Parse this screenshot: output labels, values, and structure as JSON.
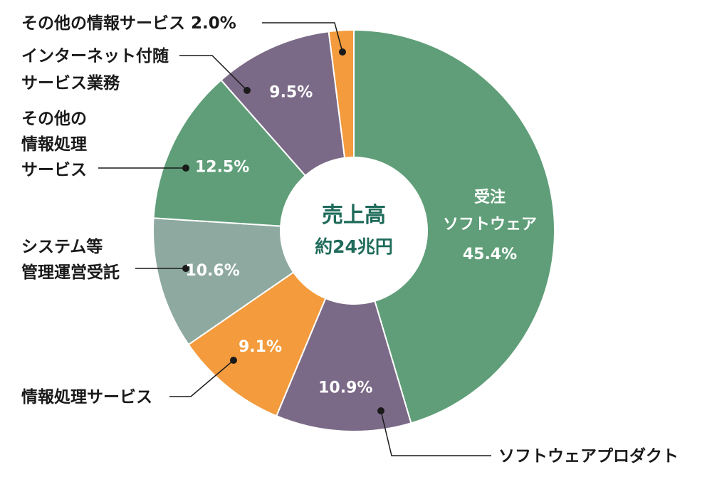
{
  "chart_data": {
    "type": "pie",
    "center_title": "売上高",
    "center_subtitle": "約24兆円",
    "slices": [
      {
        "label_lines": [
          "受注",
          "ソフトウェア"
        ],
        "value": 45.4,
        "value_label": "45.4%",
        "color": "#5f9e78"
      },
      {
        "label_lines": [
          "ソフトウェアプロダクト"
        ],
        "value": 10.9,
        "value_label": "10.9%",
        "color": "#7b6a87"
      },
      {
        "label_lines": [
          "情報処理サービス"
        ],
        "value": 9.1,
        "value_label": "9.1%",
        "color": "#f39b3d"
      },
      {
        "label_lines": [
          "システム等",
          "管理運営受託"
        ],
        "value": 10.6,
        "value_label": "10.6%",
        "color": "#8ea9a0"
      },
      {
        "label_lines": [
          "その他の",
          "情報処理",
          "サービス"
        ],
        "value": 12.5,
        "value_label": "12.5%",
        "color": "#5f9e78"
      },
      {
        "label_lines": [
          "インターネット付随",
          "サービス業務"
        ],
        "value": 9.5,
        "value_label": "9.5%",
        "color": "#7b6a87"
      },
      {
        "label_lines": [
          "その他の情報サービス 2.0%"
        ],
        "value": 2.0,
        "value_label": "",
        "color": "#f39b3d"
      }
    ]
  }
}
